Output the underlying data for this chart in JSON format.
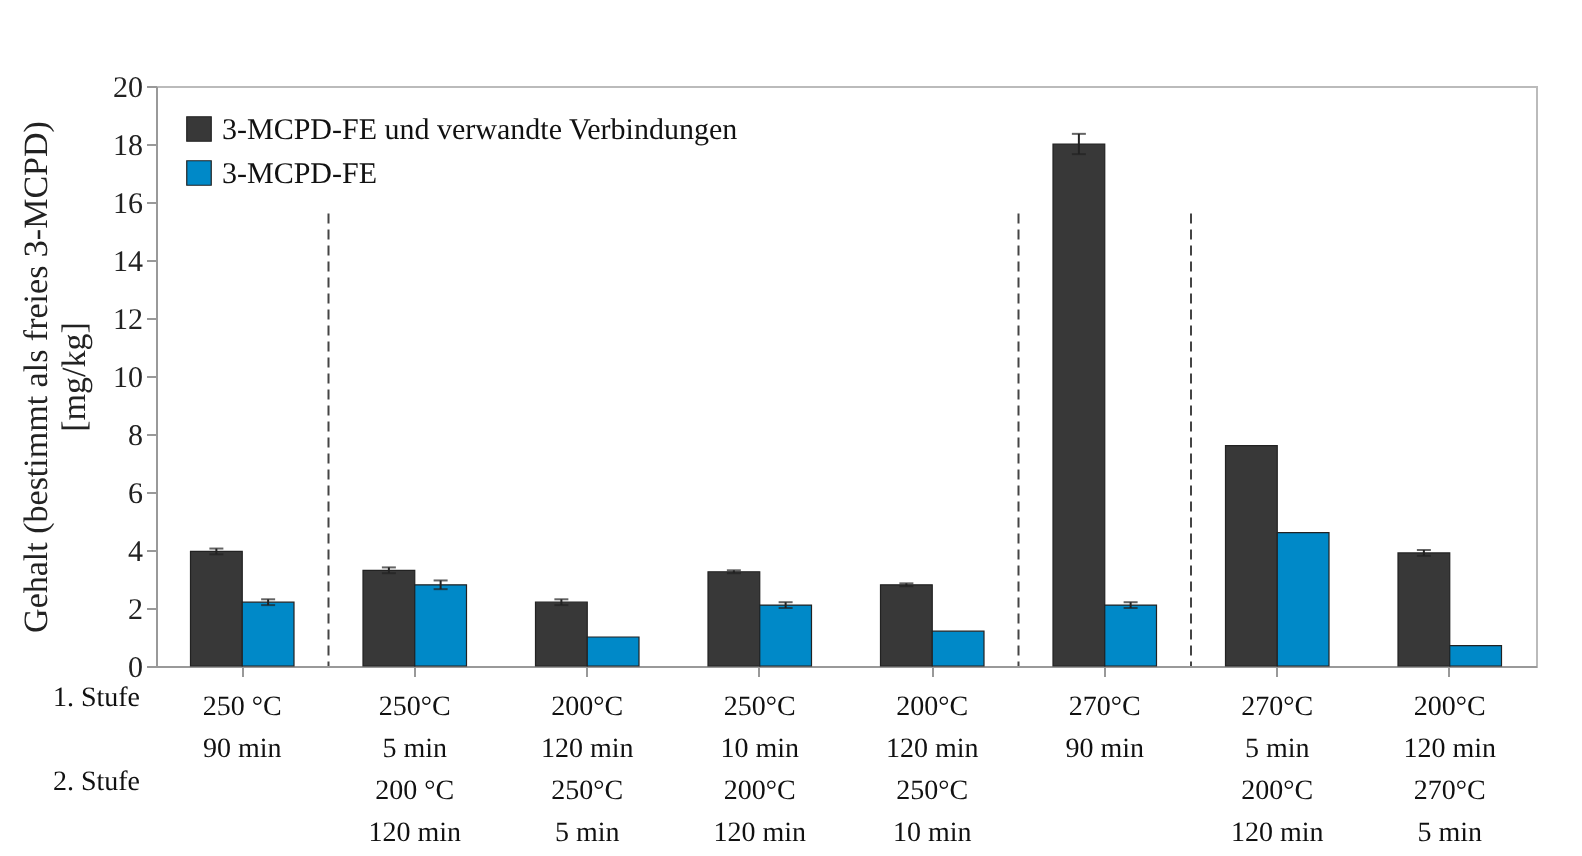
{
  "chart_data": {
    "type": "bar",
    "ylabel": "Gehalt (bestimmt als freies 3-MCPD)\n[mg/kg]",
    "categories": [
      "250 °C\n90 min",
      "250°C\n5 min\n200 °C\n120 min",
      "200°C\n120 min\n250°C\n5 min",
      "250°C\n10 min\n200°C\n120 min",
      "200°C\n120 min\n250°C\n10 min",
      "270°C\n90 min",
      "270°C\n5 min\n200°C\n120 min",
      "200°C\n120 min\n270°C\n5 min"
    ],
    "series": [
      {
        "name": "3-MCPD-FE und verwandte Verbindungen",
        "color": "#383838",
        "values": [
          3.95,
          3.3,
          2.2,
          3.25,
          2.8,
          18.0,
          7.6,
          3.9
        ],
        "errors": [
          0.1,
          0.1,
          0.1,
          0.05,
          0.05,
          0.35,
          null,
          0.1
        ]
      },
      {
        "name": "3-MCPD-FE",
        "color": "#0089c8",
        "values": [
          2.2,
          2.8,
          1.0,
          2.1,
          1.2,
          2.1,
          4.6,
          0.7
        ],
        "errors": [
          0.1,
          0.15,
          null,
          0.1,
          null,
          0.1,
          null,
          null
        ]
      }
    ],
    "ylim": [
      0,
      20
    ],
    "yticks": [
      0,
      2,
      4,
      6,
      8,
      10,
      12,
      14,
      16,
      18,
      20
    ],
    "grid": false,
    "legend": "top left",
    "annotations": [
      "1. Stufe",
      "2. Stufe"
    ]
  }
}
